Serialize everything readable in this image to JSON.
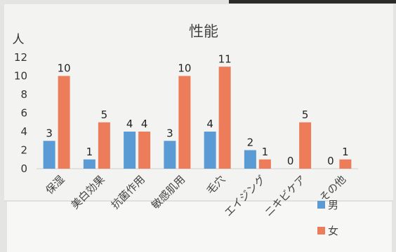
{
  "chart_data": {
    "type": "bar",
    "title": "性能",
    "ylabel": "人",
    "xlabel": "",
    "ylim": [
      0,
      12
    ],
    "yticks": [
      0,
      2,
      4,
      6,
      8,
      10,
      12
    ],
    "categories": [
      "保湿",
      "美白効果",
      "抗菌作用",
      "敏感肌用",
      "毛穴",
      "エイジング",
      "ニキビケア",
      "その他"
    ],
    "series": [
      {
        "name": "男",
        "color": "#5b9bd5",
        "values": [
          3,
          1,
          4,
          3,
          4,
          2,
          0,
          0
        ]
      },
      {
        "name": "女",
        "color": "#ed7d5a",
        "values": [
          10,
          5,
          4,
          10,
          11,
          1,
          5,
          1
        ]
      }
    ],
    "legend": "right",
    "grid": false
  }
}
